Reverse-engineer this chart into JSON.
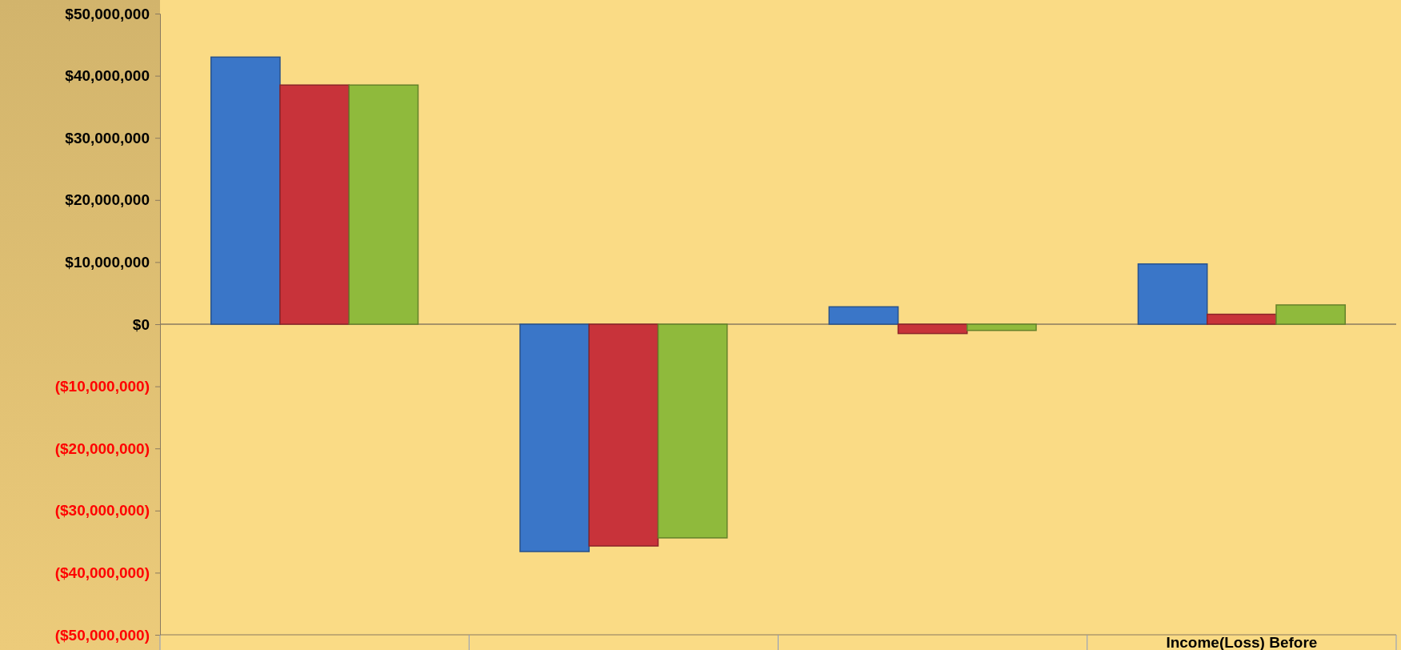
{
  "chart_data": {
    "type": "bar",
    "categories": [
      null,
      null,
      null,
      "Income(Loss) Before"
    ],
    "series": [
      {
        "color": "#3a76c8",
        "values": [
          43000000,
          -36600000,
          2800000,
          9700000
        ]
      },
      {
        "color": "#c8333a",
        "values": [
          38500000,
          -35700000,
          -1500000,
          1600000
        ]
      },
      {
        "color": "#8fba3c",
        "values": [
          38500000,
          -34400000,
          -1000000,
          3100000
        ]
      }
    ],
    "ylim": [
      -50000000,
      50000000
    ],
    "yticks": [
      {
        "value": -50000000,
        "label": "($50,000,000)"
      },
      {
        "value": -40000000,
        "label": "($40,000,000)"
      },
      {
        "value": -30000000,
        "label": "($30,000,000)"
      },
      {
        "value": -20000000,
        "label": "($20,000,000)"
      },
      {
        "value": -10000000,
        "label": "($10,000,000)"
      },
      {
        "value": 0,
        "label": "$0"
      },
      {
        "value": 10000000,
        "label": "$10,000,000"
      },
      {
        "value": 20000000,
        "label": "$20,000,000"
      },
      {
        "value": 30000000,
        "label": "$30,000,000"
      },
      {
        "value": 40000000,
        "label": "$40,000,000"
      },
      {
        "value": 50000000,
        "label": "$50,000,000"
      }
    ],
    "ref_lines": [
      {
        "axis": "y",
        "value": 0,
        "color": "#8a7a60"
      }
    ],
    "grid": false,
    "legend": false
  }
}
